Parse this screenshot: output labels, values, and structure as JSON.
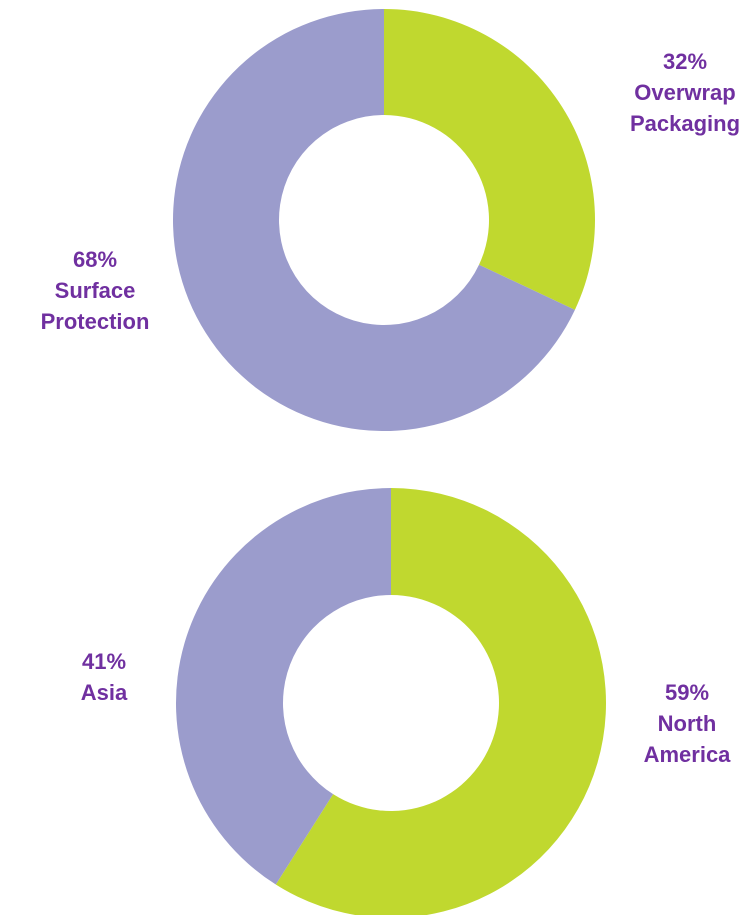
{
  "chart_data": [
    {
      "type": "pie",
      "categories": [
        "Overwrap Packaging",
        "Surface Protection"
      ],
      "values": [
        32,
        68
      ],
      "value_labels": [
        "32%",
        "68%"
      ],
      "colors": [
        "#c0d82f",
        "#9b9ccc"
      ]
    },
    {
      "type": "pie",
      "categories": [
        "North America",
        "Asia"
      ],
      "values": [
        59,
        41
      ],
      "value_labels": [
        "59%",
        "41%"
      ],
      "colors": [
        "#c0d82f",
        "#9b9ccc"
      ]
    }
  ]
}
